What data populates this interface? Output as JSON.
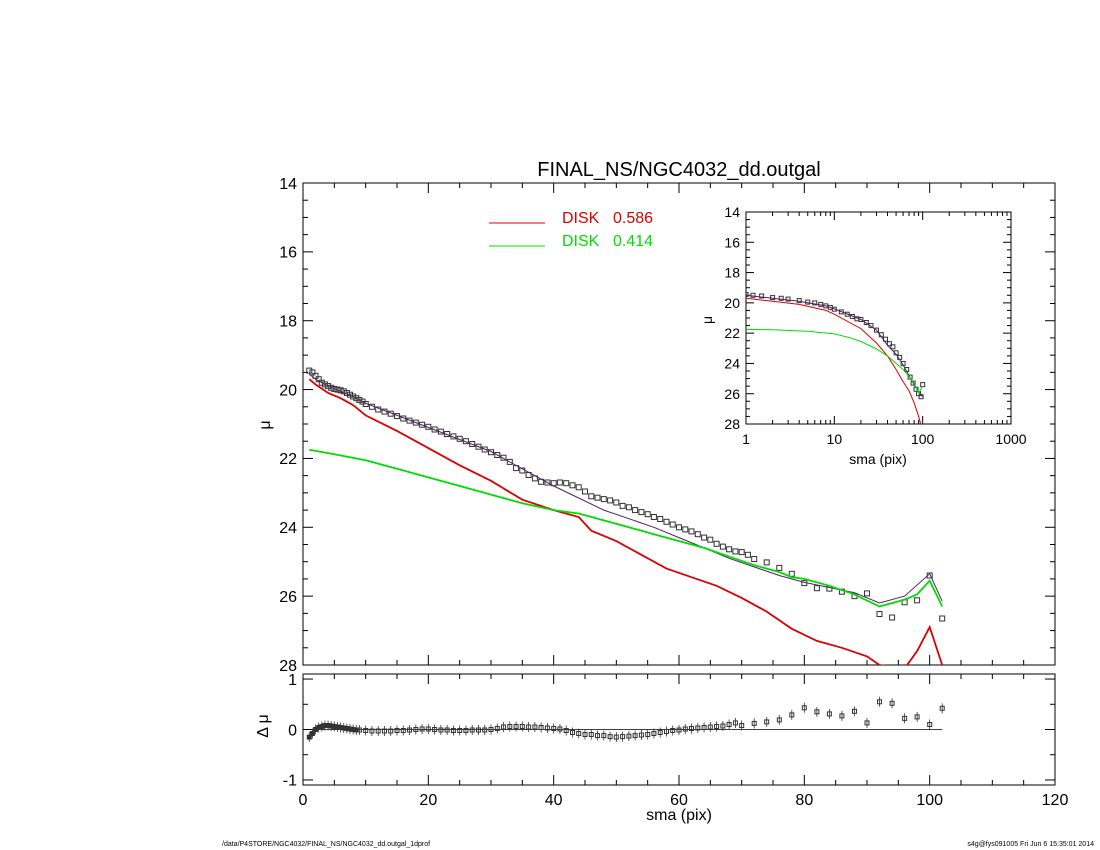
{
  "footer": {
    "left": "/data/P4STORE/NGC4032/FINAL_NS/NGC4032_dd.outgal_1dprof",
    "right": "s4g@fys091005  Fri Jun  6 15:35:01 2014"
  },
  "colors": {
    "disk1": "#dd0000",
    "disk2": "#00dd00",
    "model": "#552266",
    "data": "#333333"
  },
  "chart_data": [
    {
      "id": "main",
      "type": "line",
      "title": "FINAL_NS/NGC4032_dd.outgal",
      "xlabel": "",
      "ylabel": "μ",
      "xlim": [
        0,
        120
      ],
      "ylim": [
        14,
        28
      ],
      "y_inverted": true,
      "x_ticks": [
        0,
        20,
        40,
        60,
        80,
        100,
        120
      ],
      "y_ticks": [
        14,
        16,
        18,
        20,
        22,
        24,
        26,
        28
      ],
      "x_tick_labels": [
        "",
        "",
        "",
        "",
        "",
        "",
        ""
      ],
      "y_tick_labels": [
        "14",
        "16",
        "18",
        "20",
        "22",
        "24",
        "26",
        "28"
      ],
      "legend": {
        "placement": "top-center",
        "entries": [
          {
            "label": "DISK",
            "value": "0.586",
            "color": "#dd0000"
          },
          {
            "label": "DISK",
            "value": "0.414",
            "color": "#00dd00"
          }
        ]
      },
      "data_points": {
        "x": [
          1,
          1.5,
          2,
          2.5,
          3,
          3.5,
          4,
          4.5,
          5,
          5.5,
          6,
          6.5,
          7,
          7.5,
          8,
          8.5,
          9,
          9.5,
          10,
          11,
          12,
          13,
          14,
          15,
          16,
          17,
          18,
          19,
          20,
          21,
          22,
          23,
          24,
          25,
          26,
          27,
          28,
          29,
          30,
          31,
          32,
          33,
          34,
          35,
          36,
          37,
          38,
          39,
          40,
          41,
          42,
          43,
          44,
          45,
          46,
          47,
          48,
          49,
          50,
          51,
          52,
          53,
          54,
          55,
          56,
          57,
          58,
          59,
          60,
          61,
          62,
          63,
          64,
          65,
          66,
          67,
          68,
          69,
          70,
          71,
          72,
          74,
          76,
          78,
          80,
          82,
          84,
          86,
          88,
          90,
          92,
          94,
          96,
          98,
          100,
          102
        ],
        "y": [
          19.45,
          19.5,
          19.6,
          19.7,
          19.8,
          19.85,
          19.9,
          19.95,
          19.98,
          20.0,
          20.02,
          20.05,
          20.1,
          20.15,
          20.2,
          20.25,
          20.3,
          20.35,
          20.42,
          20.5,
          20.58,
          20.64,
          20.7,
          20.77,
          20.84,
          20.9,
          20.96,
          21.02,
          21.08,
          21.16,
          21.22,
          21.29,
          21.36,
          21.43,
          21.5,
          21.58,
          21.66,
          21.74,
          21.82,
          21.9,
          21.98,
          22.1,
          22.28,
          22.35,
          22.48,
          22.58,
          22.68,
          22.7,
          22.72,
          22.7,
          22.72,
          22.78,
          22.84,
          22.96,
          23.1,
          23.14,
          23.18,
          23.22,
          23.28,
          23.38,
          23.42,
          23.5,
          23.56,
          23.62,
          23.7,
          23.76,
          23.84,
          23.92,
          24.0,
          24.06,
          24.12,
          24.2,
          24.3,
          24.36,
          24.48,
          24.56,
          24.64,
          24.7,
          24.72,
          24.8,
          24.92,
          25.02,
          25.18,
          25.35,
          25.62,
          25.77,
          25.78,
          25.87,
          26.0,
          25.92,
          26.52,
          26.62,
          26.18,
          26.12,
          25.4,
          26.65
        ]
      },
      "model_line": {
        "x": [
          1,
          2,
          4,
          6,
          8,
          10,
          15,
          20,
          25,
          30,
          35,
          40,
          44,
          48,
          52,
          56,
          60,
          64,
          68,
          72,
          76,
          80,
          84,
          88,
          92,
          96,
          100,
          102
        ],
        "y": [
          19.55,
          19.7,
          19.9,
          20.05,
          20.2,
          20.4,
          20.75,
          21.1,
          21.45,
          21.8,
          22.3,
          22.8,
          23.15,
          23.5,
          23.75,
          24.0,
          24.3,
          24.6,
          24.9,
          25.15,
          25.4,
          25.6,
          25.75,
          25.9,
          26.2,
          26.0,
          25.35,
          26.15
        ]
      },
      "series": [
        {
          "name": "DISK 0.586",
          "color": "#dd0000",
          "x": [
            1,
            2,
            4,
            6,
            8,
            10,
            15,
            20,
            25,
            30,
            35,
            40,
            44,
            46,
            50,
            54,
            58,
            62,
            66,
            70,
            74,
            78,
            82,
            86,
            90,
            92,
            96,
            98,
            100,
            102
          ],
          "y": [
            19.7,
            19.85,
            20.1,
            20.25,
            20.45,
            20.75,
            21.2,
            21.7,
            22.2,
            22.65,
            23.2,
            23.5,
            23.7,
            24.1,
            24.4,
            24.8,
            25.2,
            25.45,
            25.7,
            26.05,
            26.45,
            26.95,
            27.3,
            27.5,
            27.75,
            28.0,
            28.1,
            27.6,
            26.9,
            28.0
          ]
        },
        {
          "name": "DISK 0.414",
          "color": "#00dd00",
          "x": [
            1,
            5,
            10,
            15,
            20,
            25,
            30,
            35,
            40,
            44,
            48,
            52,
            56,
            60,
            64,
            68,
            72,
            76,
            78,
            80,
            84,
            88,
            92,
            96,
            98,
            100,
            102
          ],
          "y": [
            21.75,
            21.88,
            22.05,
            22.3,
            22.55,
            22.8,
            23.05,
            23.3,
            23.5,
            23.6,
            23.8,
            24.0,
            24.2,
            24.4,
            24.6,
            24.85,
            25.1,
            25.3,
            25.45,
            25.5,
            25.7,
            25.95,
            26.3,
            26.1,
            25.95,
            25.55,
            26.3
          ]
        }
      ]
    },
    {
      "id": "inset",
      "type": "line",
      "title": "",
      "xlabel": "sma (pix)",
      "ylabel": "μ",
      "x_scale": "log",
      "xlim": [
        1,
        1000
      ],
      "ylim": [
        14,
        28
      ],
      "y_inverted": true,
      "x_ticks": [
        1,
        10,
        100,
        1000
      ],
      "x_tick_labels": [
        "1",
        "10",
        "100",
        "1000"
      ],
      "y_ticks": [
        14,
        16,
        18,
        20,
        22,
        24,
        26,
        28
      ],
      "y_tick_labels": [
        "14",
        "16",
        "18",
        "20",
        "22",
        "24",
        "26",
        "28"
      ],
      "data_points": {
        "x": [
          1,
          1.2,
          1.5,
          2,
          2.5,
          3,
          4,
          5,
          6,
          7,
          8,
          9,
          10,
          12,
          14,
          16,
          18,
          20,
          23,
          26,
          30,
          34,
          38,
          42,
          46,
          50,
          55,
          60,
          66,
          72,
          78,
          84,
          90,
          96,
          100
        ],
        "y": [
          19.45,
          19.5,
          19.55,
          19.65,
          19.7,
          19.75,
          19.85,
          19.95,
          20.0,
          20.1,
          20.2,
          20.3,
          20.42,
          20.6,
          20.75,
          20.9,
          21.05,
          21.1,
          21.3,
          21.5,
          21.8,
          22.1,
          22.4,
          22.7,
          22.9,
          23.3,
          23.6,
          24.0,
          24.4,
          24.9,
          25.3,
          25.7,
          26.0,
          26.2,
          25.4
        ]
      },
      "model_line": {
        "x": [
          1,
          2,
          4,
          8,
          10,
          20,
          30,
          40,
          50,
          60,
          70,
          80,
          90,
          100
        ],
        "y": [
          19.5,
          19.7,
          19.9,
          20.2,
          20.4,
          21.1,
          21.8,
          22.8,
          23.4,
          24.1,
          24.8,
          25.4,
          25.9,
          26.2
        ]
      },
      "series": [
        {
          "name": "",
          "color": "#dd0000",
          "x": [
            1,
            2,
            4,
            8,
            10,
            20,
            30,
            40,
            50,
            60,
            70,
            80,
            90,
            95,
            100
          ],
          "y": [
            19.7,
            19.9,
            20.1,
            20.5,
            20.75,
            21.7,
            22.65,
            23.5,
            24.4,
            25.2,
            25.8,
            26.6,
            27.5,
            28.0,
            28.0
          ]
        },
        {
          "name": "",
          "color": "#00dd00",
          "x": [
            1,
            2,
            5,
            10,
            15,
            20,
            30,
            40,
            50,
            60,
            70,
            80,
            90,
            100
          ],
          "y": [
            21.75,
            21.78,
            21.88,
            22.05,
            22.3,
            22.55,
            23.05,
            23.5,
            24.0,
            24.4,
            24.85,
            25.3,
            25.95,
            25.5
          ]
        }
      ]
    },
    {
      "id": "residual",
      "type": "scatter",
      "title": "",
      "xlabel": "sma (pix)",
      "ylabel": "Δ μ",
      "xlim": [
        0,
        120
      ],
      "ylim": [
        -1.1,
        1.1
      ],
      "x_ticks": [
        0,
        20,
        40,
        60,
        80,
        100,
        120
      ],
      "x_tick_labels": [
        "0",
        "20",
        "40",
        "60",
        "80",
        "100",
        "120"
      ],
      "y_ticks": [
        -1,
        0,
        1
      ],
      "y_tick_labels": [
        "-1",
        "0",
        "1"
      ],
      "zero_line": [
        1,
        102
      ],
      "points": {
        "x": [
          1,
          1.5,
          2,
          2.5,
          3,
          3.5,
          4,
          4.5,
          5,
          5.5,
          6,
          6.5,
          7,
          7.5,
          8,
          8.5,
          9,
          10,
          11,
          12,
          13,
          14,
          15,
          16,
          17,
          18,
          19,
          20,
          21,
          22,
          23,
          24,
          25,
          26,
          27,
          28,
          29,
          30,
          31,
          32,
          33,
          34,
          35,
          36,
          37,
          38,
          39,
          40,
          41,
          42,
          43,
          44,
          45,
          46,
          47,
          48,
          49,
          50,
          51,
          52,
          53,
          54,
          55,
          56,
          57,
          58,
          59,
          60,
          61,
          62,
          63,
          64,
          65,
          66,
          67,
          68,
          69,
          70,
          72,
          74,
          76,
          78,
          80,
          82,
          84,
          86,
          88,
          90,
          92,
          94,
          96,
          98,
          100,
          102
        ],
        "y": [
          -0.15,
          -0.08,
          0.0,
          0.04,
          0.06,
          0.08,
          0.08,
          0.07,
          0.06,
          0.05,
          0.04,
          0.03,
          0.02,
          0.01,
          0.0,
          -0.01,
          -0.01,
          -0.02,
          -0.03,
          -0.03,
          -0.03,
          -0.03,
          -0.02,
          -0.02,
          -0.01,
          0.0,
          0.01,
          0.01,
          0.0,
          -0.01,
          -0.01,
          -0.02,
          -0.02,
          -0.02,
          -0.01,
          -0.01,
          -0.01,
          0.0,
          0.02,
          0.05,
          0.06,
          0.06,
          0.06,
          0.05,
          0.05,
          0.04,
          0.03,
          0.02,
          0.01,
          -0.02,
          -0.06,
          -0.08,
          -0.1,
          -0.1,
          -0.12,
          -0.12,
          -0.14,
          -0.15,
          -0.14,
          -0.13,
          -0.12,
          -0.11,
          -0.1,
          -0.08,
          -0.06,
          -0.04,
          -0.02,
          -0.01,
          0.01,
          0.02,
          0.03,
          0.04,
          0.05,
          0.06,
          0.07,
          0.1,
          0.13,
          0.08,
          0.12,
          0.15,
          0.19,
          0.29,
          0.43,
          0.35,
          0.31,
          0.27,
          0.36,
          0.13,
          0.55,
          0.52,
          0.22,
          0.25,
          0.1,
          0.42
        ]
      }
    }
  ]
}
